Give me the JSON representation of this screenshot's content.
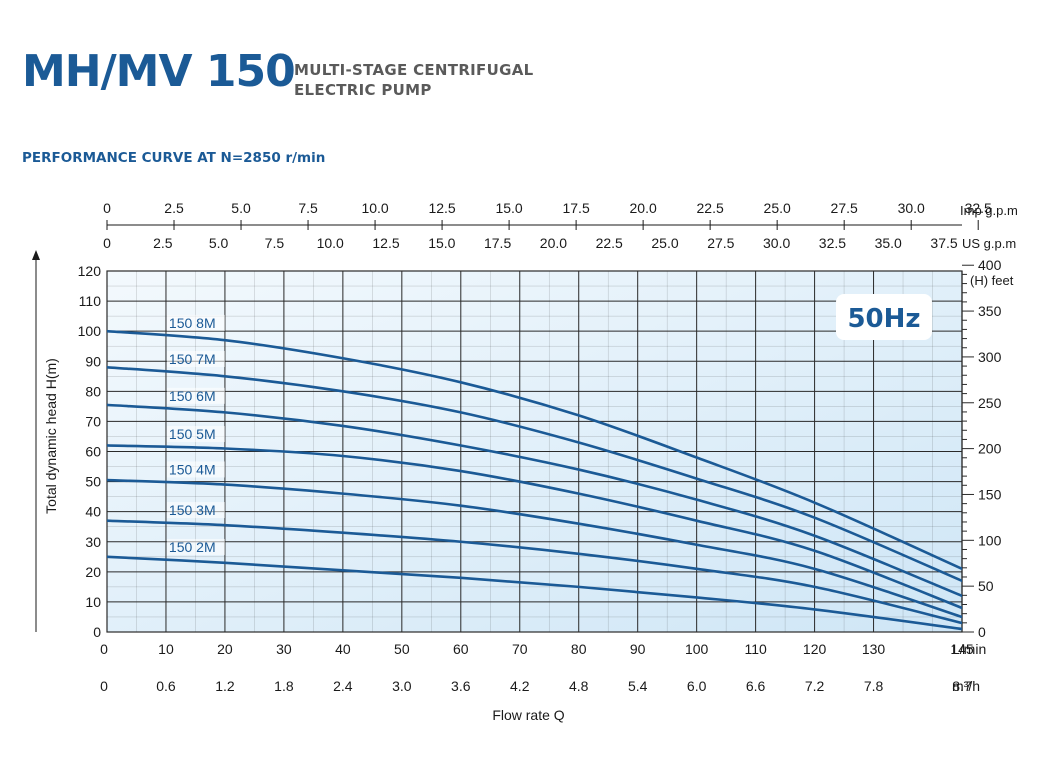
{
  "header": {
    "title": "MH/MV 150",
    "subtitle_line1": "MULTI-STAGE CENTRIFUGAL",
    "subtitle_line2": "ELECTRIC PUMP",
    "performance_label": "PERFORMANCE CURVE AT N=2850  r/min"
  },
  "colors": {
    "curve": "#1b5a96",
    "grid": "#2a2a2a",
    "plot_bg_light": "#f3f9fd",
    "plot_bg_dark": "#cfe6f6",
    "badge_text": "#1b5a96"
  },
  "chart_data": {
    "type": "line",
    "badge": "50Hz",
    "ylabel": "Total dynamic head H(m)",
    "xlabel": "Flow rate Q",
    "ylim": [
      0,
      120
    ],
    "xlim": [
      0,
      145
    ],
    "grid": true,
    "y_ticks": [
      0,
      10,
      20,
      30,
      40,
      50,
      60,
      70,
      80,
      90,
      100,
      110,
      120
    ],
    "x_ticks_lmin": [
      0,
      10,
      20,
      30,
      40,
      50,
      60,
      70,
      80,
      90,
      100,
      110,
      120,
      130,
      145
    ],
    "x_unit_lmin": "L/min",
    "x_ticks_m3h": [
      "0",
      "0.6",
      "1.2",
      "1.8",
      "2.4",
      "3.0",
      "3.6",
      "4.2",
      "4.8",
      "5.4",
      "6.0",
      "6.6",
      "7.2",
      "7.8",
      "8.7"
    ],
    "x_unit_m3h": "m³/h",
    "imp_gpm_ticks": [
      "0",
      "2.5",
      "5.0",
      "7.5",
      "10.0",
      "12.5",
      "15.0",
      "17.5",
      "20.0",
      "22.5",
      "25.0",
      "27.5",
      "30.0",
      "32.5"
    ],
    "imp_gpm_unit": "Imp g.p.m",
    "us_gpm_ticks": [
      "0",
      "2.5",
      "5.0",
      "7.5",
      "10.0",
      "12.5",
      "15.0",
      "17.5",
      "20.0",
      "22.5",
      "25.0",
      "27.5",
      "30.0",
      "32.5",
      "35.0",
      "37.5"
    ],
    "us_gpm_unit": "US g.p.m",
    "feet_ticks": [
      0,
      50,
      100,
      150,
      200,
      250,
      300,
      350,
      400
    ],
    "feet_unit": "(H) feet",
    "series": [
      {
        "name": "150 8M",
        "x": [
          0,
          20,
          40,
          60,
          80,
          100,
          120,
          145
        ],
        "values": [
          100,
          97,
          91,
          83,
          72,
          58,
          43,
          21
        ]
      },
      {
        "name": "150 7M",
        "x": [
          0,
          20,
          40,
          60,
          80,
          100,
          120,
          145
        ],
        "values": [
          88,
          85,
          80,
          73,
          63,
          51,
          38,
          17
        ]
      },
      {
        "name": "150 6M",
        "x": [
          0,
          20,
          40,
          60,
          80,
          100,
          120,
          145
        ],
        "values": [
          75.5,
          73,
          68.5,
          62,
          54,
          44,
          32,
          12
        ]
      },
      {
        "name": "150 5M",
        "x": [
          0,
          20,
          40,
          60,
          80,
          100,
          120,
          145
        ],
        "values": [
          62,
          61,
          58.5,
          53.5,
          46,
          37,
          27,
          8
        ]
      },
      {
        "name": "150 4M",
        "x": [
          0,
          20,
          40,
          60,
          80,
          100,
          120,
          145
        ],
        "values": [
          50.5,
          49,
          46,
          42,
          36,
          29,
          21,
          5
        ]
      },
      {
        "name": "150 3M",
        "x": [
          0,
          20,
          40,
          60,
          80,
          100,
          120,
          145
        ],
        "values": [
          37,
          35.5,
          33,
          30,
          26,
          21,
          15,
          3
        ]
      },
      {
        "name": "150 2M",
        "x": [
          0,
          20,
          40,
          60,
          80,
          100,
          120,
          145
        ],
        "values": [
          25,
          23,
          20.5,
          18,
          15,
          11.5,
          7.5,
          1
        ]
      }
    ]
  }
}
